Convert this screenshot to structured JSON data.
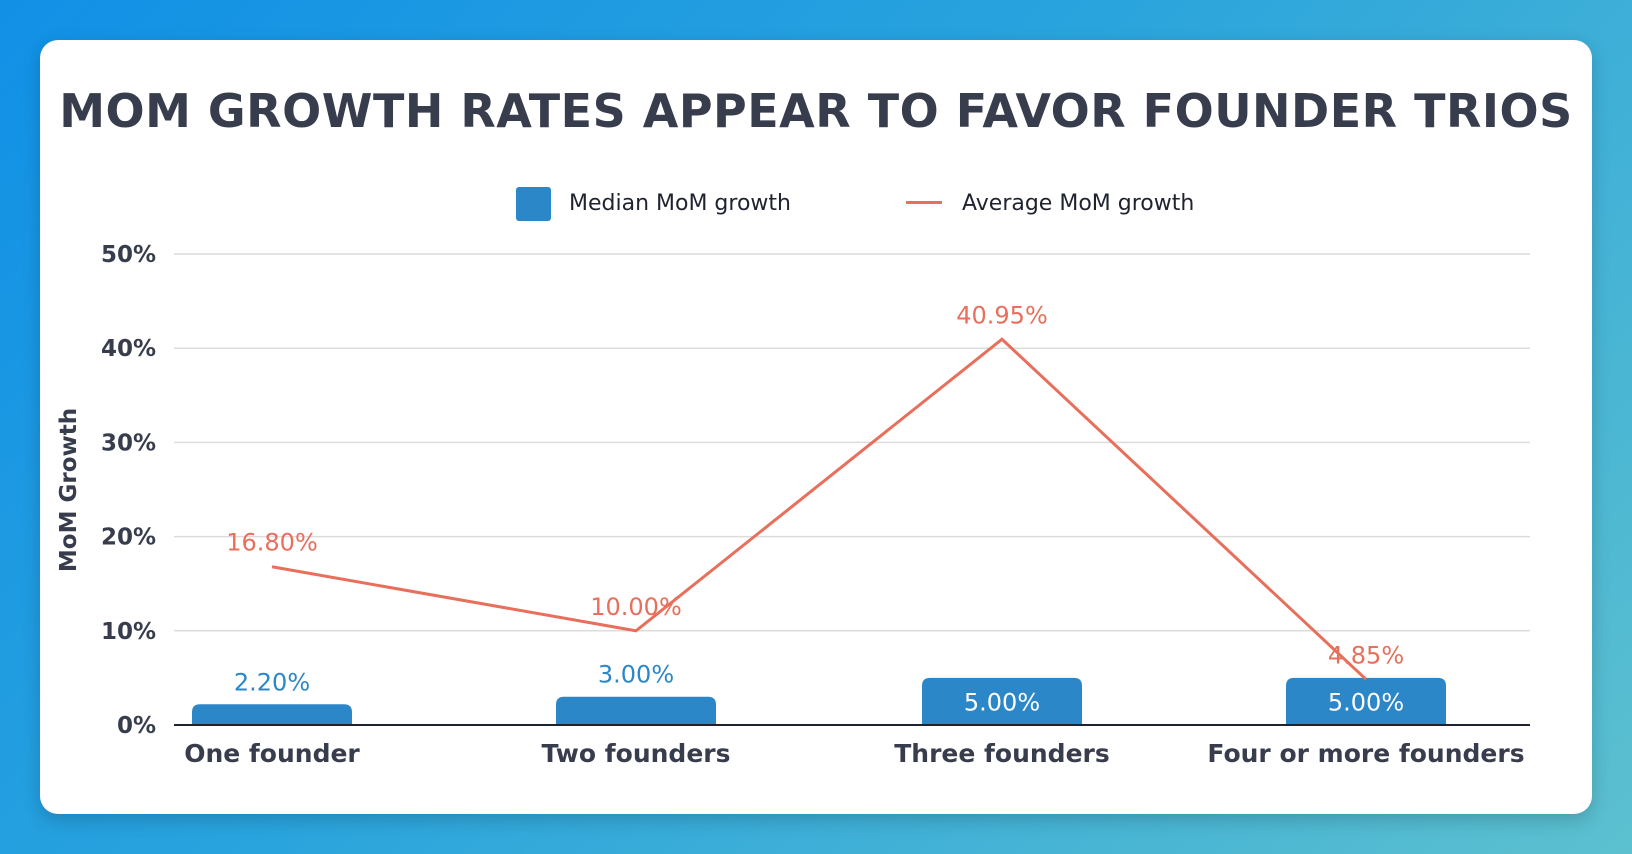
{
  "colors": {
    "background_start": "#1190e6",
    "background_end": "#5cc0cf",
    "card": "#ffffff",
    "title": "#383d4d",
    "axis_text": "#383d4d",
    "bar": "#2b87c8",
    "bar_label_outside": "#2b87c8",
    "bar_label_inside": "#ffffff",
    "line": "#e76f5b",
    "gridline": "#dcdcdc"
  },
  "chart_data": {
    "type": "bar",
    "title": "MOM GROWTH RATES APPEAR TO FAVOR FOUNDER TRIOS",
    "ylabel": "MoM Growth",
    "xlabel": "",
    "categories": [
      "One founder",
      "Two founders",
      "Three founders",
      "Four or more founders"
    ],
    "ylim": [
      0,
      50
    ],
    "yticks": [
      0,
      10,
      20,
      30,
      40,
      50
    ],
    "ytick_labels": [
      "0%",
      "10%",
      "20%",
      "30%",
      "40%",
      "50%"
    ],
    "grid": true,
    "legend_position": "top-center",
    "series": [
      {
        "name": "Median MoM growth",
        "type": "bar",
        "values": [
          2.2,
          3.0,
          5.0,
          5.0
        ],
        "labels": [
          "2.20%",
          "3.00%",
          "5.00%",
          "5.00%"
        ],
        "label_inside": [
          false,
          false,
          true,
          true
        ]
      },
      {
        "name": "Average MoM growth",
        "type": "line",
        "values": [
          16.8,
          10.0,
          40.95,
          4.85
        ],
        "labels": [
          "16.80%",
          "10.00%",
          "40.95%",
          "4.85%"
        ]
      }
    ]
  }
}
